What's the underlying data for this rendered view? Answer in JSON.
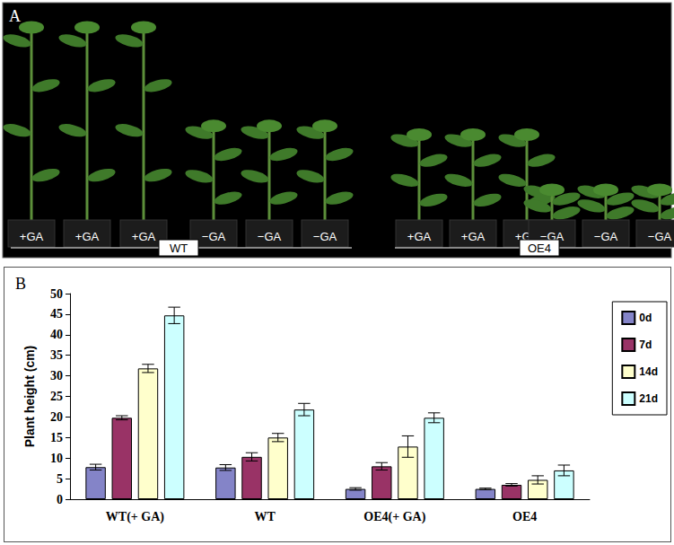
{
  "panel_a": {
    "label": "A",
    "groups": [
      {
        "name": "WT",
        "pots": [
          "+GA",
          "+GA",
          "+GA",
          "−GA",
          "−GA",
          "−GA"
        ]
      },
      {
        "name": "OE4",
        "pots": [
          "+GA",
          "+GA",
          "+GA",
          "−GA",
          "−GA",
          "−GA"
        ]
      }
    ]
  },
  "chart_data": {
    "type": "bar",
    "title": "B",
    "y_label": "Plant height (cm)",
    "categories": [
      "WT(+ GA)",
      "WT",
      "OE4(+ GA)",
      "OE4"
    ],
    "series": [
      {
        "name": "0d",
        "color": "#8484c8",
        "values": [
          7.8,
          7.7,
          2.5,
          2.5
        ],
        "errors": [
          0.7,
          0.7,
          0.3,
          0.2
        ]
      },
      {
        "name": "7d",
        "color": "#993366",
        "values": [
          19.8,
          10.3,
          8.0,
          3.5
        ],
        "errors": [
          0.5,
          1.0,
          0.9,
          0.3
        ]
      },
      {
        "name": "14d",
        "color": "#ffffcc",
        "values": [
          31.8,
          15.0,
          12.8,
          4.7
        ],
        "errors": [
          1.0,
          1.0,
          2.6,
          1.0
        ]
      },
      {
        "name": "21d",
        "color": "#ccffff",
        "values": [
          44.7,
          21.8,
          19.8,
          7.0
        ],
        "errors": [
          2.0,
          1.5,
          1.2,
          1.3
        ]
      }
    ],
    "ylim": [
      0,
      50
    ],
    "yticks": [
      0,
      5,
      10,
      15,
      20,
      25,
      30,
      35,
      40,
      45,
      50
    ],
    "grid": false,
    "legend": "right"
  }
}
